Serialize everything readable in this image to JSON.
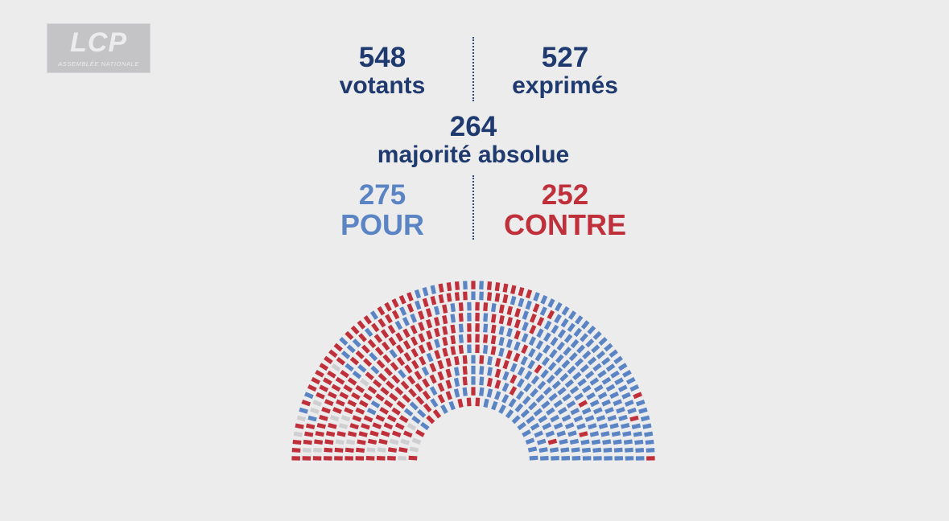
{
  "logo": {
    "mark": "LCP",
    "sub": "ASSEMBLÉE NATIONALE"
  },
  "stats": {
    "votants": {
      "value": "548",
      "label": "votants"
    },
    "exprimes": {
      "value": "527",
      "label": "exprimés"
    },
    "majorite": {
      "value": "264",
      "label": "majorité absolue"
    },
    "pour": {
      "value": "275",
      "label": "POUR"
    },
    "contre": {
      "value": "252",
      "label": "CONTRE"
    }
  },
  "colors": {
    "pour": "#5b84c4",
    "contre": "#c0303a",
    "other": "#cfcfd1",
    "text": "#1f3a6e",
    "background": "#ececed"
  },
  "chart_data": {
    "type": "hemicycle",
    "values": {
      "votants": 548,
      "exprimes": 527,
      "majorite_absolue": 264,
      "pour": 275,
      "contre": 252
    },
    "legend": [
      "POUR",
      "CONTRE"
    ]
  }
}
